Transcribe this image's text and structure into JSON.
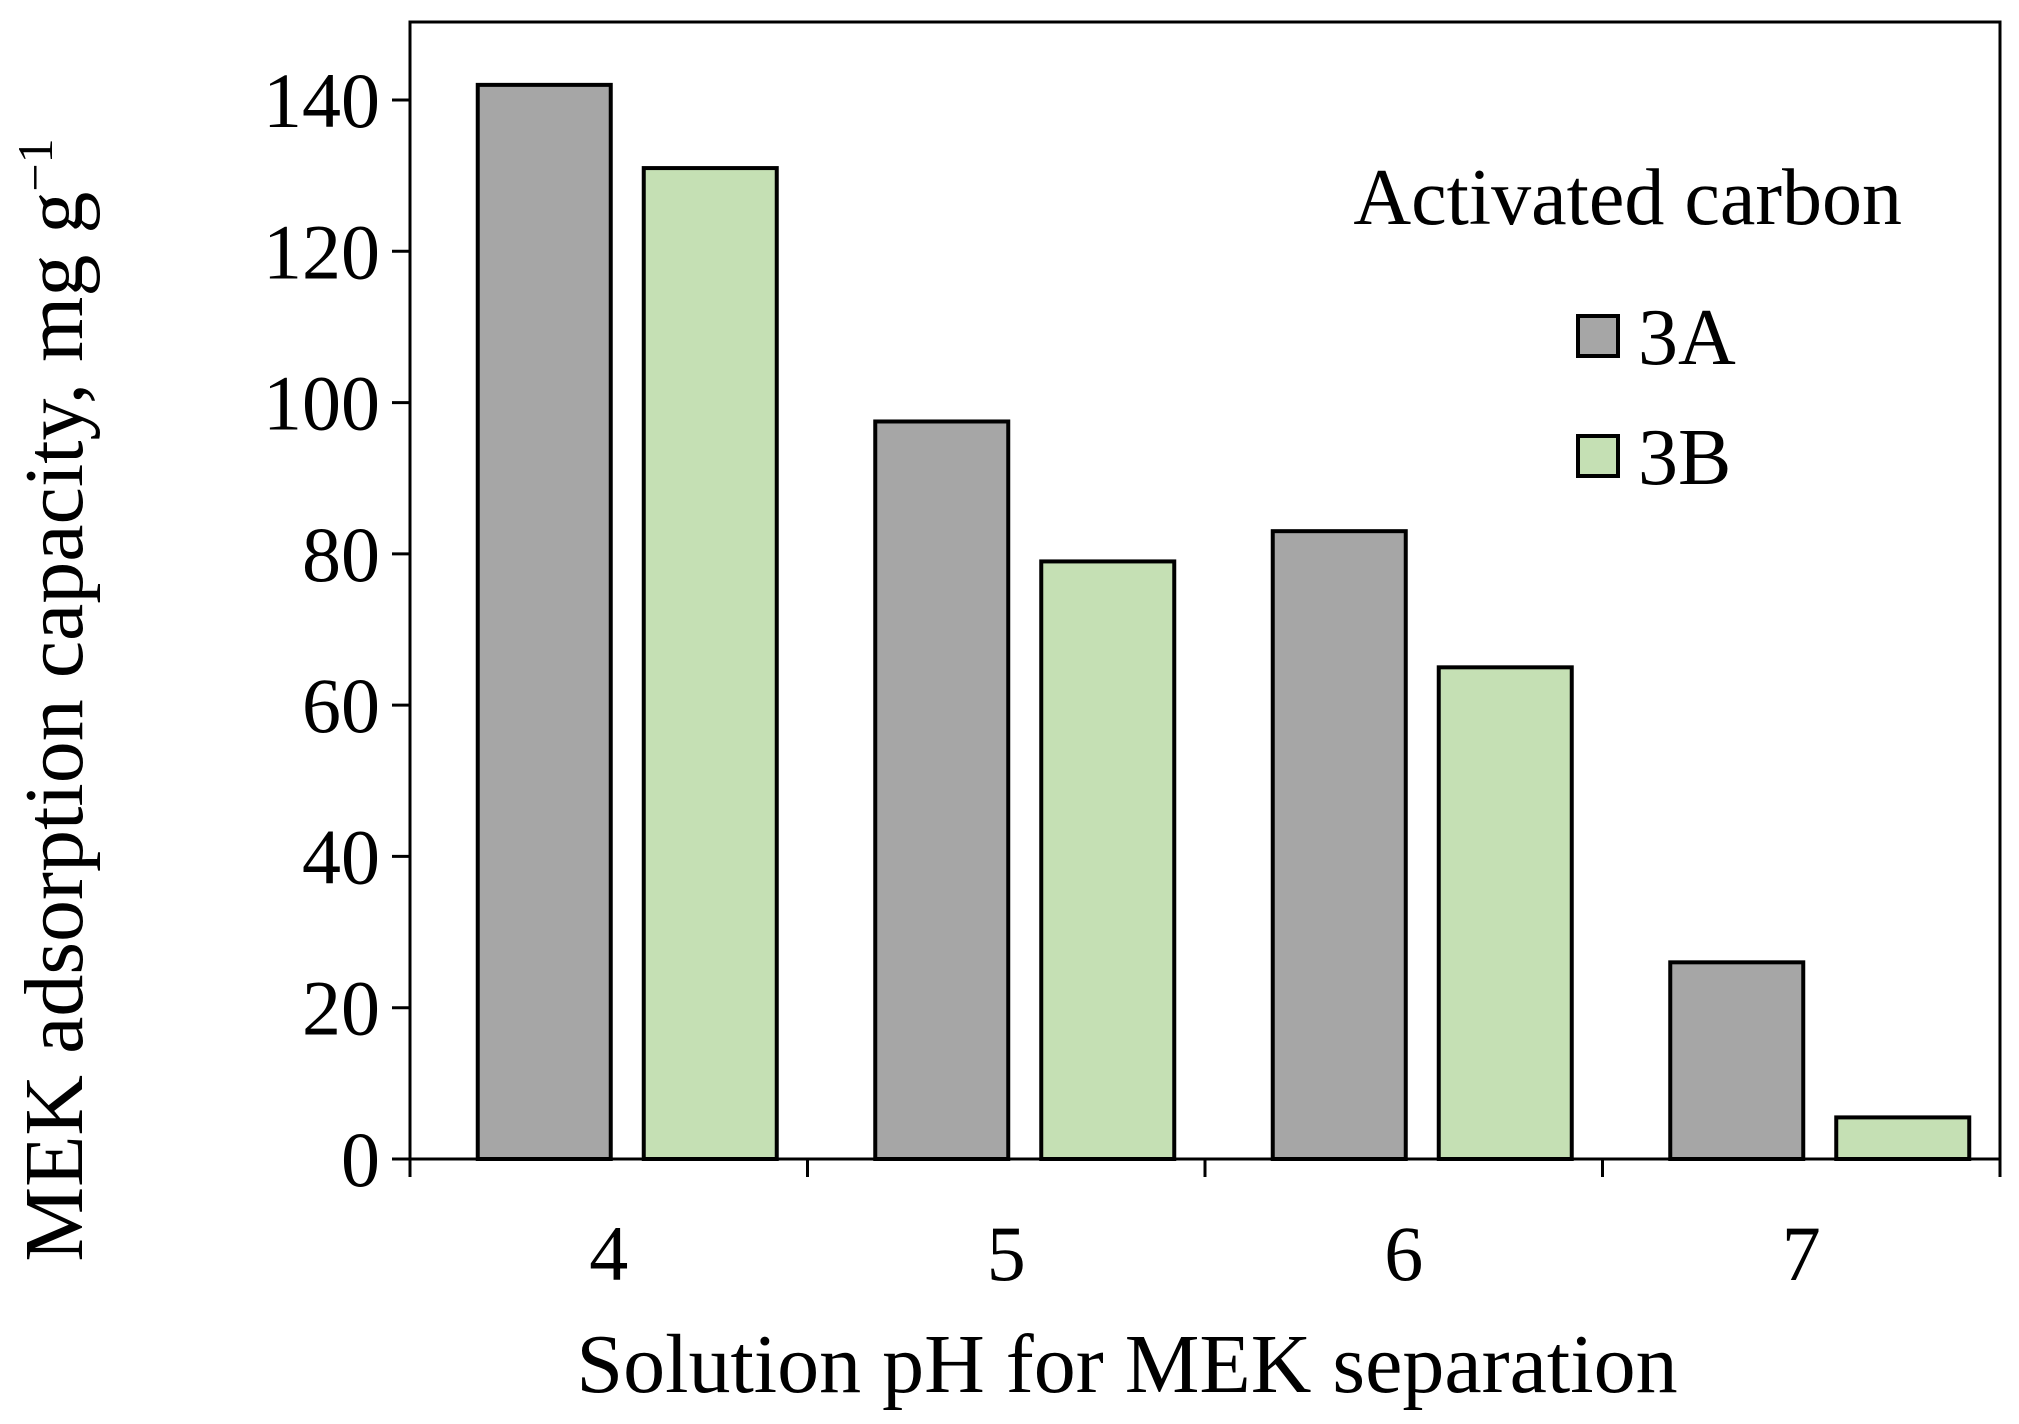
{
  "chart_data": {
    "type": "bar",
    "xlabel": "Solution pH for MEK separation",
    "ylabel": "MEK adsorption capacity, mg g",
    "ylabel_superscript": "−1",
    "categories": [
      "4",
      "5",
      "6",
      "7"
    ],
    "ylim": [
      0,
      140
    ],
    "yticks": [
      "0",
      "20",
      "40",
      "60",
      "80",
      "100",
      "120",
      "140"
    ],
    "grid": false,
    "legend": {
      "title": "Activated carbon",
      "placement": "top-right"
    },
    "series": [
      {
        "name": "3A",
        "color": "#a6a6a6",
        "values": [
          142,
          97.5,
          83,
          26
        ]
      },
      {
        "name": "3B",
        "color": "#c5e0b4",
        "values": [
          131,
          79,
          65,
          5.5
        ]
      }
    ]
  }
}
